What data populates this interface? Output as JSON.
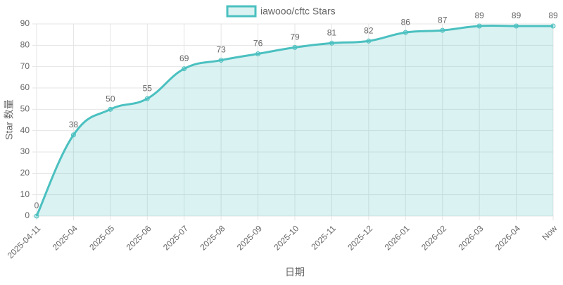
{
  "chart_data": {
    "type": "line",
    "x_label": "日期",
    "y_label": "Star 数量",
    "categories": [
      "2025-04-11",
      "2025-04",
      "2025-05",
      "2025-06",
      "2025-07",
      "2025-08",
      "2025-09",
      "2025-10",
      "2025-11",
      "2025-12",
      "2026-01",
      "2026-02",
      "2026-03",
      "2026-04",
      "Now"
    ],
    "series": [
      {
        "name": "iawooo/cftc Stars",
        "color": "#4bc0c0",
        "values": [
          0,
          38,
          50,
          55,
          69,
          73,
          76,
          79,
          81,
          82,
          86,
          87,
          89,
          89,
          89
        ]
      }
    ],
    "ylim": [
      0,
      90
    ],
    "yticks": [
      0,
      10,
      20,
      30,
      40,
      50,
      60,
      70,
      80,
      90
    ],
    "grid": true,
    "legend": "top",
    "fill": true
  }
}
